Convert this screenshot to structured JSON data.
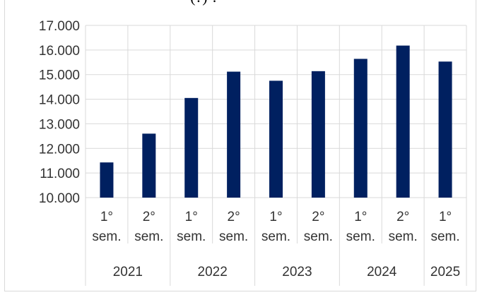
{
  "chart_data": {
    "type": "bar",
    "title": "(?) ?",
    "groups": [
      {
        "year": "2021",
        "categories": [
          "1°\nsem.",
          "2°\nsem."
        ]
      },
      {
        "year": "2022",
        "categories": [
          "1°\nsem.",
          "2°\nsem."
        ]
      },
      {
        "year": "2023",
        "categories": [
          "1°\nsem.",
          "2°\nsem."
        ]
      },
      {
        "year": "2024",
        "categories": [
          "1°\nsem.",
          "2°\nsem."
        ]
      },
      {
        "year": "2025",
        "categories": [
          "1°\nsem."
        ]
      }
    ],
    "categories": [
      "2021 1° sem.",
      "2021 2° sem.",
      "2022 1° sem.",
      "2022 2° sem.",
      "2023 1° sem.",
      "2023 2° sem.",
      "2024 1° sem.",
      "2024 2° sem.",
      "2025 1° sem."
    ],
    "values": [
      11430,
      12600,
      14050,
      15120,
      14750,
      15140,
      15640,
      16180,
      15530
    ],
    "ylim": [
      10000,
      17000
    ],
    "yticks": [
      10000,
      11000,
      12000,
      13000,
      14000,
      15000,
      16000,
      17000
    ],
    "ytick_labels": [
      "10.000",
      "11.000",
      "12.000",
      "13.000",
      "14.000",
      "15.000",
      "16.000",
      "17.000"
    ],
    "xlabel": "",
    "ylabel": "",
    "grid": true,
    "legend": "none",
    "bar_color": "#002060",
    "grid_color": "#d9d9d9"
  }
}
